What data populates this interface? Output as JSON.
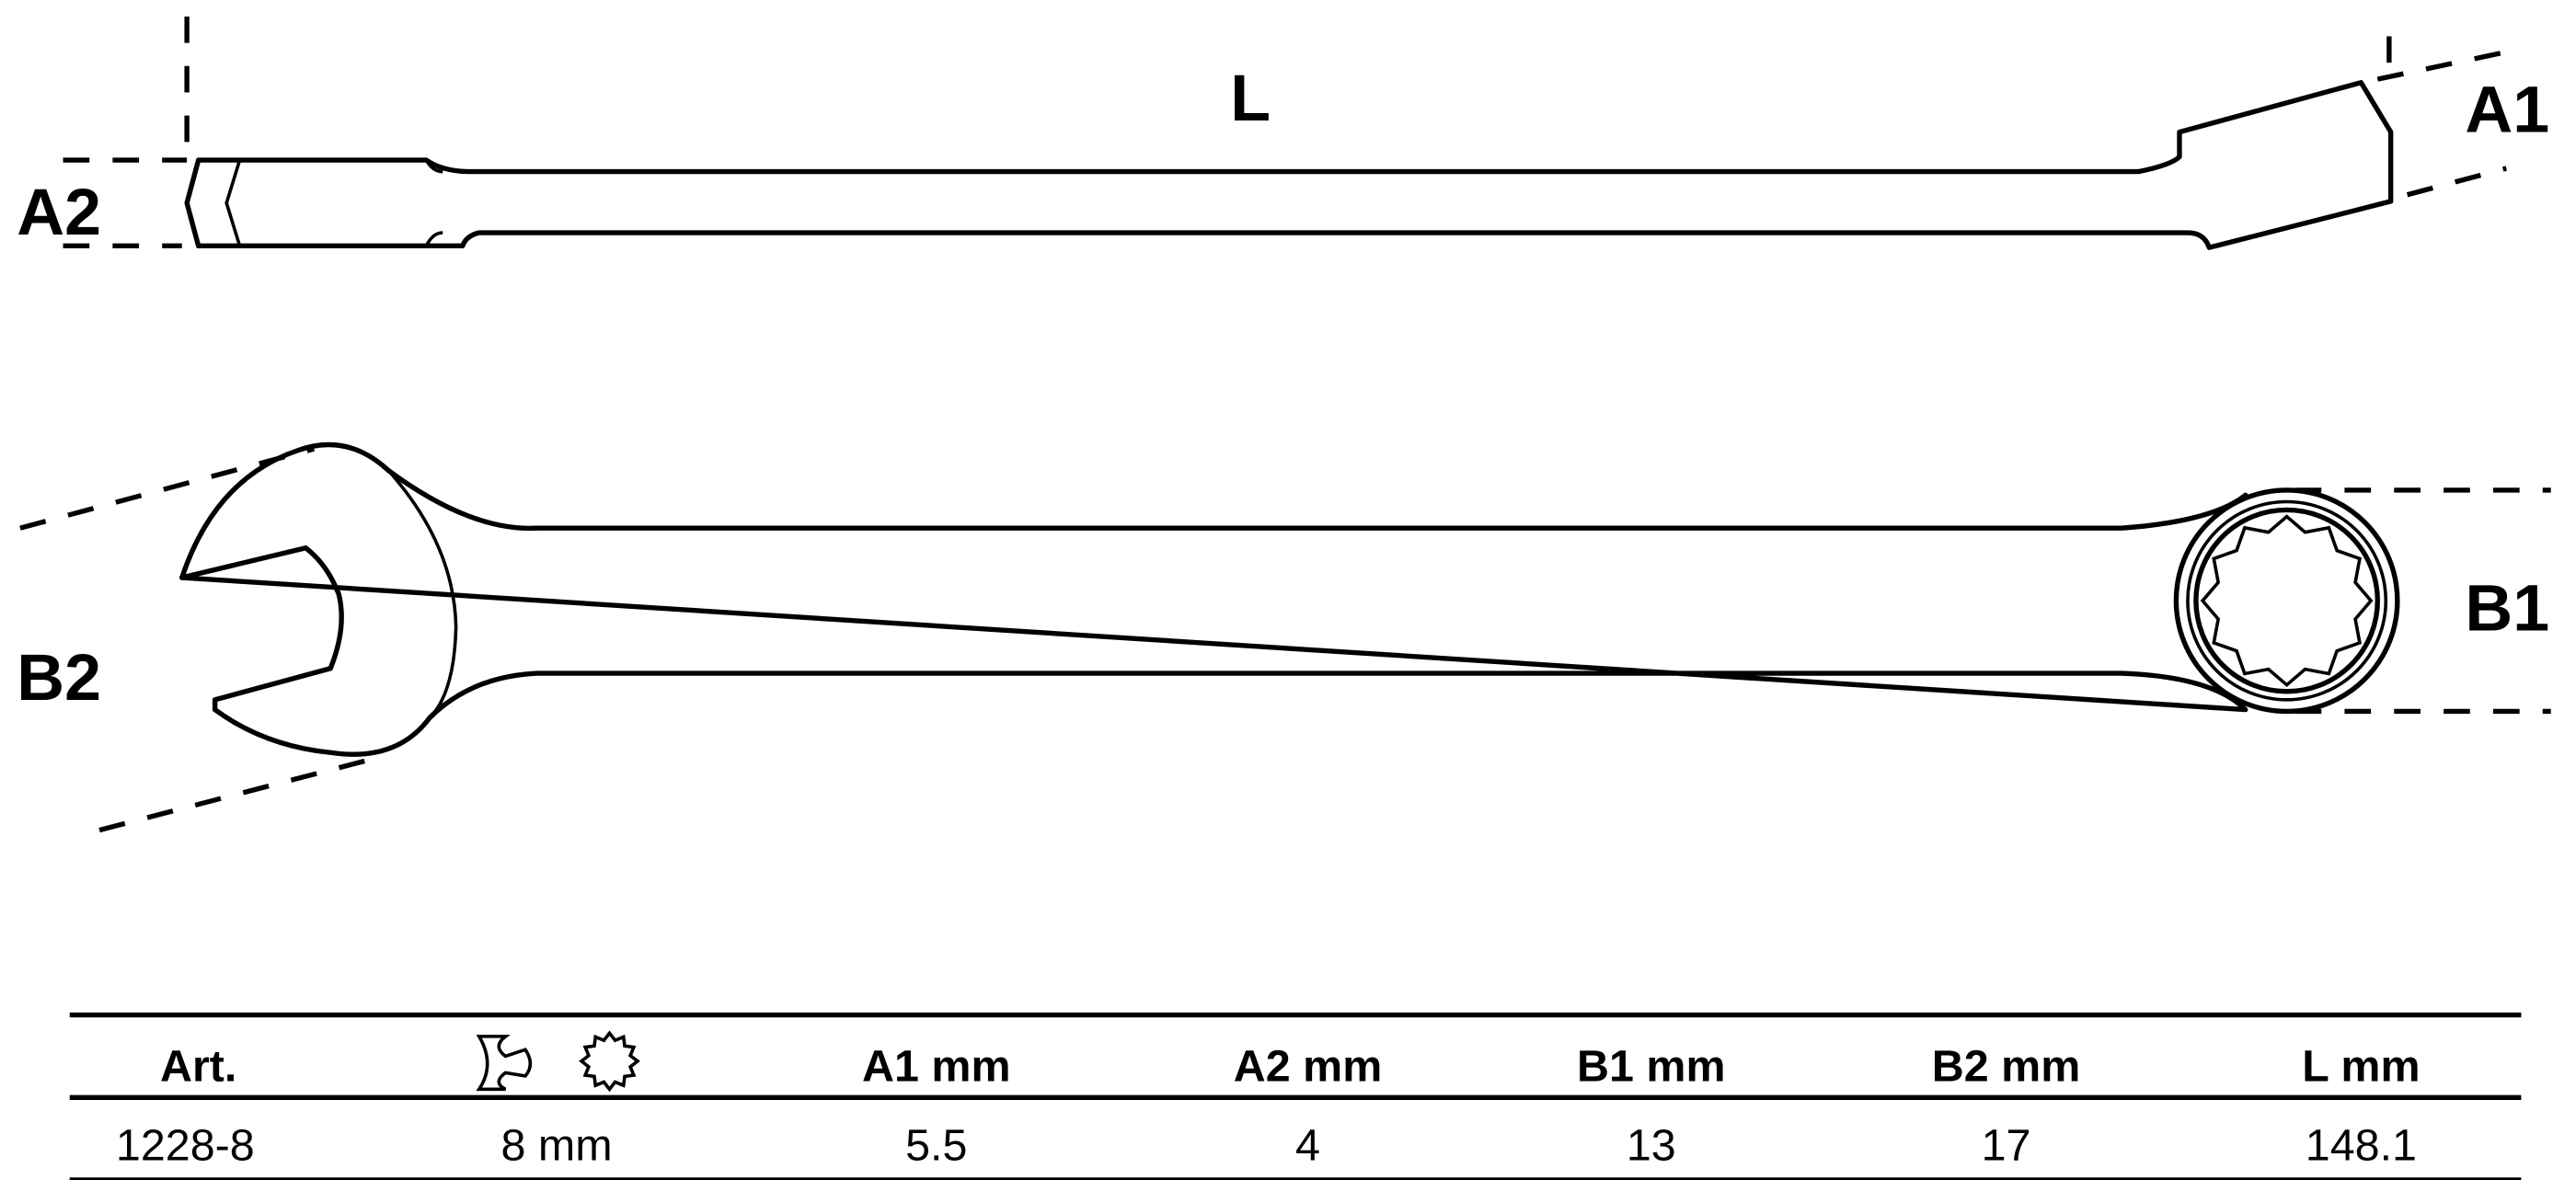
{
  "dimension_labels": {
    "L": "L",
    "A1": "A1",
    "A2": "A2",
    "B1": "B1",
    "B2": "B2"
  },
  "table": {
    "headers": [
      "Art.",
      "",
      "A1   mm",
      "A2  mm",
      "B1  mm",
      "B2   mm",
      "L   mm"
    ],
    "header_icons": [
      "open-end-wrench-icon",
      "twelve-point-ring-icon"
    ],
    "rows": [
      [
        "1228-8",
        "8 mm",
        "5.5",
        "4",
        "13",
        "17",
        "148.1"
      ]
    ]
  }
}
